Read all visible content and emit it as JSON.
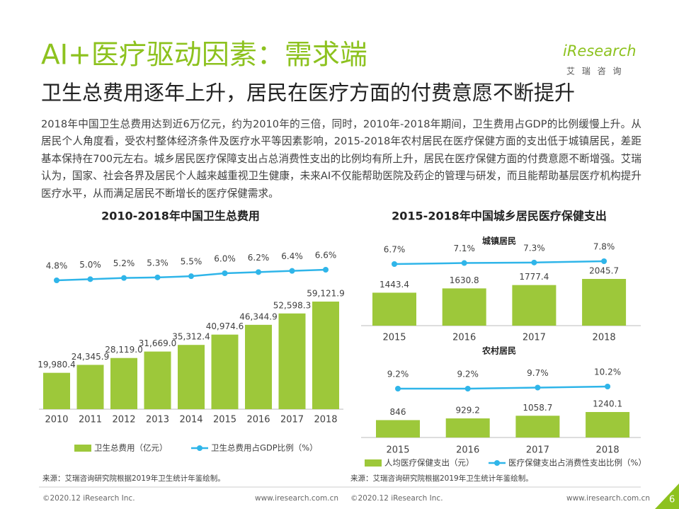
{
  "header": {
    "title": "AI+医疗驱动因素：需求端",
    "subtitle": "卫生总费用逐年上升，居民在医疗方面的付费意愿不断提升"
  },
  "logo": {
    "name": "iResearch",
    "tagline": "艾 瑞 咨 询"
  },
  "body": "2018年中国卫生总费用达到近6万亿元，约为2010年的三倍，同时，2010年-2018年期间，卫生费用占GDP的比例缓慢上升。从居民个人角度看，受农村整体经济条件及医疗水平等因素影响，2015-2018年农村居民在医疗保健方面的支出低于城镇居民，差距基本保持在700元左右。城乡居民医疗保障支出占总消费性支出的比例均有所上升，居民在医疗保健方面的付费意愿不断增强。艾瑞认为，国家、社会各界及居民个人越来越重视卫生健康，未来AI不仅能帮助医院及药企的管理与研发，而且能帮助基层医疗机构提升医疗水平，从而满足居民不断增长的医疗保健需求。",
  "chart_data": [
    {
      "type": "bar",
      "title": "2010-2018年中国卫生总费用",
      "categories": [
        "2010",
        "2011",
        "2012",
        "2013",
        "2014",
        "2015",
        "2016",
        "2017",
        "2018"
      ],
      "series": [
        {
          "name": "卫生总费用（亿元）",
          "type": "bar",
          "color": "#9dc83a",
          "values": [
            19980.4,
            24345.9,
            28119.0,
            31669.0,
            35312.4,
            40974.6,
            46344.9,
            52598.3,
            59121.9
          ],
          "value_labels": [
            "19,980.4",
            "24,345.9",
            "28,119.0",
            "31,669.0",
            "35,312.4",
            "40,974.6",
            "46,344.9",
            "52,598.3",
            "59,121.9"
          ]
        },
        {
          "name": "卫生总费用占GDP比例（%）",
          "type": "line",
          "axis": "y2",
          "color": "#2fb5e9",
          "values": [
            4.8,
            5.0,
            5.2,
            5.3,
            5.5,
            6.0,
            6.2,
            6.4,
            6.6
          ],
          "value_labels": [
            "4.8%",
            "5.0%",
            "5.2%",
            "5.3%",
            "5.5%",
            "6.0%",
            "6.2%",
            "6.4%",
            "6.6%"
          ]
        }
      ]
    },
    {
      "type": "bar",
      "title": "2015-2018年中国城乡居民医疗保健支出",
      "subtitle": "城镇居民",
      "categories": [
        "2015",
        "2016",
        "2017",
        "2018"
      ],
      "series": [
        {
          "name": "人均医疗保健支出（元）",
          "type": "bar",
          "color": "#9dc83a",
          "values": [
            1443.4,
            1630.8,
            1777.4,
            2045.7
          ]
        },
        {
          "name": "医疗保健支出占消费性支出比例（%）",
          "type": "line",
          "axis": "y2",
          "color": "#2fb5e9",
          "values": [
            6.7,
            7.1,
            7.3,
            7.8
          ],
          "value_labels": [
            "6.7%",
            "7.1%",
            "7.3%",
            "7.8%"
          ]
        }
      ]
    },
    {
      "type": "bar",
      "subtitle": "农村居民",
      "categories": [
        "2015",
        "2016",
        "2017",
        "2018"
      ],
      "series": [
        {
          "type": "bar",
          "color": "#9dc83a",
          "values": [
            846,
            929.2,
            1058.7,
            1240.1
          ]
        },
        {
          "type": "line",
          "axis": "y2",
          "color": "#2fb5e9",
          "values": [
            9.2,
            9.2,
            9.7,
            10.2
          ],
          "value_labels": [
            "9.2%",
            "9.2%",
            "9.7%",
            "10.2%"
          ]
        }
      ]
    }
  ],
  "sources": [
    "来源：艾瑞咨询研究院根据2019年卫生统计年鉴绘制。",
    "来源：艾瑞咨询研究院根据2019年卫生统计年鉴绘制。"
  ],
  "footer": {
    "copyright": [
      "©2020.12 iResearch Inc.",
      "©2020.12 iResearch Inc."
    ],
    "url": [
      "www.iresearch.com.cn",
      "www.iresearch.com.cn"
    ],
    "page": "6"
  }
}
